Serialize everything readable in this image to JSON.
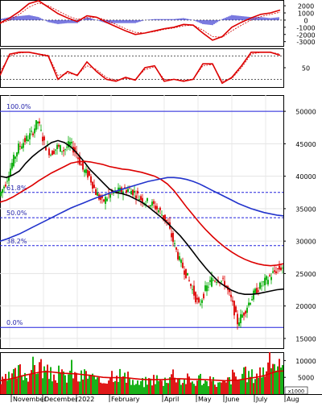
{
  "chart_data": [
    {
      "type": "line",
      "panel": "macd",
      "yticks": [
        2000,
        1000,
        0,
        -1000,
        -2000,
        -3000
      ],
      "ytick_labels": [
        "2000",
        "1000",
        "0",
        "-1000",
        "-2000",
        "-3000"
      ],
      "ylim": [
        -3600,
        2800
      ],
      "x": [
        0,
        12,
        24,
        36,
        48,
        60,
        72,
        84,
        96,
        108,
        120,
        132,
        144,
        156,
        168,
        180,
        192,
        204,
        216,
        228,
        240,
        252,
        264,
        276,
        288,
        300,
        312,
        324,
        336,
        348
      ],
      "series": [
        {
          "values": [
            -400,
            300,
            1200,
            2300,
            2700,
            1800,
            900,
            300,
            -200,
            600,
            400,
            -300,
            -900,
            -1500,
            -2000,
            -1800,
            -1500,
            -1200,
            -1000,
            -600,
            -700,
            -1800,
            -2800,
            -2300,
            -1000,
            -300,
            300,
            800,
            1000,
            1400
          ]
        },
        {
          "values": [
            -500,
            0,
            800,
            1800,
            2400,
            2000,
            1300,
            600,
            100,
            300,
            400,
            0,
            -600,
            -1200,
            -1700,
            -1800,
            -1600,
            -1300,
            -1100,
            -800,
            -700,
            -1400,
            -2300,
            -2400,
            -1500,
            -700,
            0,
            500,
            800,
            1100
          ]
        }
      ]
    },
    {
      "type": "line",
      "panel": "stochastic",
      "yticks": [
        50
      ],
      "ytick_labels": [
        "50"
      ],
      "guide_levels": [
        80,
        20
      ],
      "ylim": [
        0,
        100
      ],
      "x": [
        0,
        12,
        24,
        36,
        48,
        60,
        72,
        84,
        96,
        108,
        120,
        132,
        144,
        156,
        168,
        180,
        192,
        204,
        216,
        228,
        240,
        252,
        264,
        276,
        288,
        300,
        312,
        324,
        336,
        348
      ],
      "series": [
        {
          "values": [
            30,
            85,
            90,
            90,
            85,
            80,
            20,
            40,
            30,
            65,
            40,
            20,
            15,
            25,
            18,
            50,
            55,
            15,
            20,
            15,
            20,
            60,
            60,
            10,
            25,
            55,
            90,
            90,
            90,
            82
          ]
        },
        {
          "values": [
            40,
            80,
            88,
            90,
            86,
            82,
            30,
            35,
            32,
            55,
            45,
            25,
            18,
            22,
            20,
            45,
            52,
            20,
            20,
            17,
            20,
            55,
            58,
            15,
            22,
            50,
            85,
            90,
            90,
            85
          ]
        }
      ]
    },
    {
      "type": "line",
      "panel": "price",
      "x_tick_labels": [
        "November",
        "December",
        "2022",
        "February",
        "April",
        "May",
        "June",
        "July",
        "Aug"
      ],
      "yticks": [
        50000,
        45000,
        40000,
        35000,
        30000,
        25000,
        20000,
        15000
      ],
      "ytick_labels": [
        "50000",
        "45000",
        "40000",
        "35000",
        "30000",
        "25000",
        "20000",
        "15000"
      ],
      "ylim": [
        13500,
        52500
      ],
      "fibonacci_levels": [
        {
          "label": "100.0%",
          "value": 50000
        },
        {
          "label": "61.8%",
          "value": 37500
        },
        {
          "label": "50.0%",
          "value": 33600
        },
        {
          "label": "38.2%",
          "value": 29300
        },
        {
          "label": "0.0%",
          "value": 16700
        }
      ],
      "x": [
        0,
        8,
        16,
        24,
        32,
        40,
        48,
        56,
        64,
        72,
        80,
        88,
        96,
        104,
        112,
        120,
        128,
        136,
        144,
        152,
        160,
        168,
        176,
        184,
        192,
        200,
        208,
        216,
        224,
        232,
        240,
        248,
        256,
        264,
        272,
        280,
        288,
        296,
        304,
        312,
        320,
        328,
        336,
        344,
        352
      ],
      "price": [
        37000,
        39000,
        42000,
        44500,
        45500,
        46500,
        48500,
        45000,
        43500,
        44500,
        44000,
        45000,
        43500,
        41000,
        40000,
        37500,
        36000,
        37000,
        37500,
        37800,
        38000,
        37500,
        36500,
        36000,
        35500,
        34500,
        33000,
        30000,
        27000,
        25000,
        22500,
        20000,
        22500,
        24000,
        24200,
        23500,
        21000,
        17500,
        19000,
        21000,
        22500,
        23500,
        24500,
        25500,
        26000
      ],
      "series": [
        {
          "name": "ma_black",
          "values": [
            40000,
            39800,
            40200,
            40800,
            42000,
            43000,
            43800,
            44500,
            45200,
            45500,
            45200,
            44500,
            43500,
            42300,
            41000,
            40000,
            39000,
            38000,
            37500,
            37300,
            37000,
            36500,
            36000,
            35300,
            34500,
            33700,
            32800,
            31800,
            30800,
            29600,
            28300,
            27000,
            25800,
            24700,
            23700,
            23000,
            22400,
            22000,
            21800,
            21800,
            21900,
            22100,
            22300,
            22500,
            22600
          ]
        },
        {
          "name": "ma_red",
          "values": [
            36000,
            36300,
            36800,
            37400,
            38000,
            38600,
            39300,
            39900,
            40500,
            41000,
            41500,
            42000,
            42200,
            42300,
            42200,
            42000,
            41800,
            41500,
            41300,
            41100,
            41000,
            40800,
            40600,
            40300,
            40000,
            39500,
            38800,
            37800,
            36500,
            35200,
            34000,
            32800,
            31700,
            30700,
            29800,
            29000,
            28300,
            27700,
            27200,
            26800,
            26500,
            26300,
            26200,
            26300,
            26500
          ]
        },
        {
          "name": "ma_blue",
          "values": [
            30000,
            30300,
            30700,
            31100,
            31600,
            32100,
            32600,
            33100,
            33600,
            34100,
            34600,
            35100,
            35500,
            35900,
            36300,
            36700,
            37000,
            37400,
            37700,
            38000,
            38300,
            38600,
            38900,
            39200,
            39400,
            39600,
            39800,
            39800,
            39700,
            39500,
            39200,
            38800,
            38300,
            37800,
            37300,
            36800,
            36300,
            35800,
            35400,
            35000,
            34700,
            34400,
            34200,
            34000,
            33900
          ]
        }
      ]
    },
    {
      "type": "bar",
      "panel": "volume",
      "yticks": [
        5000,
        10000
      ],
      "ytick_labels": [
        "5000",
        "10000"
      ],
      "unit_label": "x1000",
      "ylim": [
        0,
        12500
      ],
      "x": [
        0,
        8,
        16,
        24,
        32,
        40,
        48,
        56,
        64,
        72,
        80,
        88,
        96,
        104,
        112,
        120,
        128,
        136,
        144,
        152,
        160,
        168,
        176,
        184,
        192,
        200,
        208,
        216,
        224,
        232,
        240,
        248,
        256,
        264,
        272,
        280,
        288,
        296,
        304,
        312,
        320,
        328,
        336,
        344,
        352
      ],
      "values": [
        3500,
        4500,
        5500,
        7000,
        6000,
        8000,
        9000,
        6500,
        5500,
        6000,
        5000,
        7500,
        4500,
        6000,
        5500,
        3500,
        4000,
        6000,
        7000,
        5000,
        4500,
        3000,
        3500,
        4000,
        5000,
        3500,
        5500,
        6500,
        4000,
        4500,
        3500,
        5000,
        3500,
        4000,
        3000,
        3500,
        5500,
        4500,
        6000,
        5500,
        6500,
        7500,
        10500,
        9000,
        5000
      ],
      "series": [
        {
          "name": "vol_ma",
          "values": [
            4000,
            4300,
            4700,
            5200,
            5700,
            6100,
            6500,
            6700,
            6600,
            6400,
            6200,
            6100,
            6000,
            5800,
            5600,
            5300,
            5000,
            4900,
            4900,
            4900,
            4800,
            4600,
            4400,
            4300,
            4300,
            4300,
            4400,
            4600,
            4600,
            4500,
            4400,
            4400,
            4300,
            4200,
            4100,
            4000,
            4100,
            4200,
            4500,
            4800,
            5100,
            5500,
            6200,
            6800,
            6900
          ]
        }
      ]
    }
  ]
}
